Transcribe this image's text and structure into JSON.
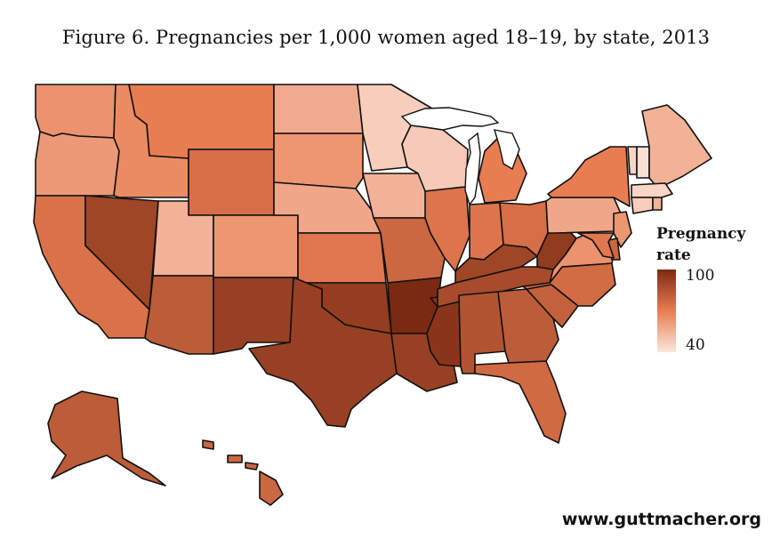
{
  "title": "Figure 6. Pregnancies per 1,000 women aged 18–19, by state, 2013",
  "legend": {
    "title_line1": "Pregnancy",
    "title_line2": "rate",
    "max_label": "100",
    "min_label": "40",
    "min_value": 40,
    "max_value": 100,
    "color_low": "#fbe6dc",
    "color_high": "#7b2a12"
  },
  "credit": "www.guttmacher.org",
  "colors": {
    "outline": "#111111",
    "background": "#ffffff"
  },
  "chart_data": {
    "type": "choropleth",
    "value_label": "Pregnancy rate",
    "range": [
      40,
      100
    ],
    "states": [
      {
        "name": "WA",
        "value": 64
      },
      {
        "name": "OR",
        "value": 62
      },
      {
        "name": "CA",
        "value": 74
      },
      {
        "name": "NV",
        "value": 90
      },
      {
        "name": "ID",
        "value": 66
      },
      {
        "name": "MT",
        "value": 70
      },
      {
        "name": "WY",
        "value": 75
      },
      {
        "name": "UT",
        "value": 55
      },
      {
        "name": "CO",
        "value": 63
      },
      {
        "name": "AZ",
        "value": 82
      },
      {
        "name": "NM",
        "value": 92
      },
      {
        "name": "ND",
        "value": 57
      },
      {
        "name": "SD",
        "value": 63
      },
      {
        "name": "NE",
        "value": 58
      },
      {
        "name": "KS",
        "value": 72
      },
      {
        "name": "OK",
        "value": 93
      },
      {
        "name": "TX",
        "value": 92
      },
      {
        "name": "MN",
        "value": 47
      },
      {
        "name": "IA",
        "value": 55
      },
      {
        "name": "MO",
        "value": 78
      },
      {
        "name": "AR",
        "value": 100
      },
      {
        "name": "LA",
        "value": 92
      },
      {
        "name": "WI",
        "value": 48
      },
      {
        "name": "IL",
        "value": 73
      },
      {
        "name": "MS",
        "value": 96
      },
      {
        "name": "MI",
        "value": 70
      },
      {
        "name": "IN",
        "value": 73
      },
      {
        "name": "KY",
        "value": 90
      },
      {
        "name": "TN",
        "value": 88
      },
      {
        "name": "AL",
        "value": 85
      },
      {
        "name": "GA",
        "value": 82
      },
      {
        "name": "FL",
        "value": 77
      },
      {
        "name": "OH",
        "value": 75
      },
      {
        "name": "WV",
        "value": 94
      },
      {
        "name": "SC",
        "value": 80
      },
      {
        "name": "NC",
        "value": 76
      },
      {
        "name": "VA",
        "value": 64
      },
      {
        "name": "PA",
        "value": 58
      },
      {
        "name": "NY",
        "value": 70
      },
      {
        "name": "VT",
        "value": 45
      },
      {
        "name": "NH",
        "value": 42
      },
      {
        "name": "ME",
        "value": 55
      },
      {
        "name": "MA",
        "value": 45
      },
      {
        "name": "CT",
        "value": 47
      },
      {
        "name": "RI",
        "value": 55
      },
      {
        "name": "NJ",
        "value": 63
      },
      {
        "name": "DE",
        "value": 78
      },
      {
        "name": "MD",
        "value": 72
      },
      {
        "name": "AK",
        "value": 82
      },
      {
        "name": "HI",
        "value": 78
      }
    ]
  }
}
